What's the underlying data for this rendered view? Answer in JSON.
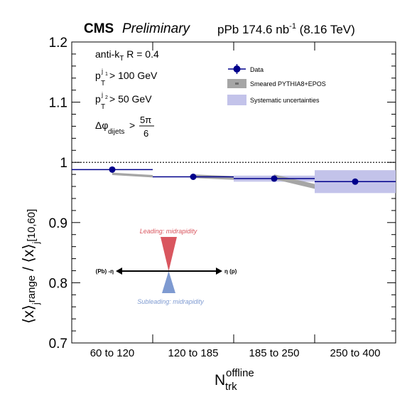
{
  "header": {
    "cms": "CMS",
    "preliminary": "Preliminary",
    "lumi_main": "pPb 174.6 nb",
    "lumi_sup": "-1",
    "lumi_energy": " (8.16 TeV)"
  },
  "annotations": {
    "jet_algo": {
      "main": "anti-k",
      "sub": "T",
      "rest": " R = 0.4"
    },
    "pt1": {
      "main": "p",
      "sub": "T",
      "sup": "j",
      "supsub": "1",
      "rest": " > 100 GeV"
    },
    "pt2": {
      "main": "p",
      "sub": "T",
      "sup": "j",
      "supsub": "2",
      "rest": " > 50 GeV"
    },
    "dphi": {
      "main": "Δφ",
      "sub": "dijets",
      "rest": " > ",
      "num": "5π",
      "den": "6"
    }
  },
  "axes": {
    "ylabel": {
      "left": "⟨x⟩",
      "sub1": "j",
      "sub2": "range",
      "mid": " / ⟨x⟩",
      "sub3": "j",
      "sub4": "[10,60]"
    },
    "xlabel": {
      "main": "N",
      "sup": "offline",
      "sub": "trk"
    }
  },
  "legend": {
    "position": "top-right",
    "entries": [
      {
        "label": "Data",
        "style": "marker",
        "color": "#00008b"
      },
      {
        "label": "Smeared PYTHIA8+EPOS",
        "style": "band",
        "color": "#a6a6a6"
      },
      {
        "label": "Systematic uncertainties",
        "style": "box",
        "color": "#c3c3ea"
      }
    ]
  },
  "inset": {
    "leading": "Leading: midrapidity",
    "subleading": "Subleading: midrapidity",
    "left_label": "(Pb) -η",
    "right_label": "η (p)",
    "leading_color": "#d9565f",
    "subleading_color": "#7e9ad1"
  },
  "chart_data": {
    "type": "scatter",
    "categories": [
      "60 to 120",
      "120 to 185",
      "185 to 250",
      "250 to 400"
    ],
    "ylim": [
      0.7,
      1.2
    ],
    "yticks": [
      0.7,
      0.8,
      0.9,
      1.0,
      1.1,
      1.2
    ],
    "ytick_labels": [
      "0.7",
      "0.8",
      "0.9",
      "1",
      "1.1",
      "1.2"
    ],
    "reference_line": 1.0,
    "grid": false,
    "series": [
      {
        "name": "Data",
        "values": [
          0.988,
          0.976,
          0.973,
          0.968
        ],
        "syst": [
          0.0,
          0.0,
          0.005,
          0.019
        ],
        "color": "#00008b"
      },
      {
        "name": "Smeared PYTHIA8+EPOS",
        "start": [
          0.981,
          0.977,
          0.976,
          null
        ],
        "end": [
          0.977,
          0.974,
          0.96,
          null
        ],
        "width": [
          0.002,
          0.003,
          0.004,
          null
        ],
        "color": "#a6a6a6"
      }
    ]
  }
}
